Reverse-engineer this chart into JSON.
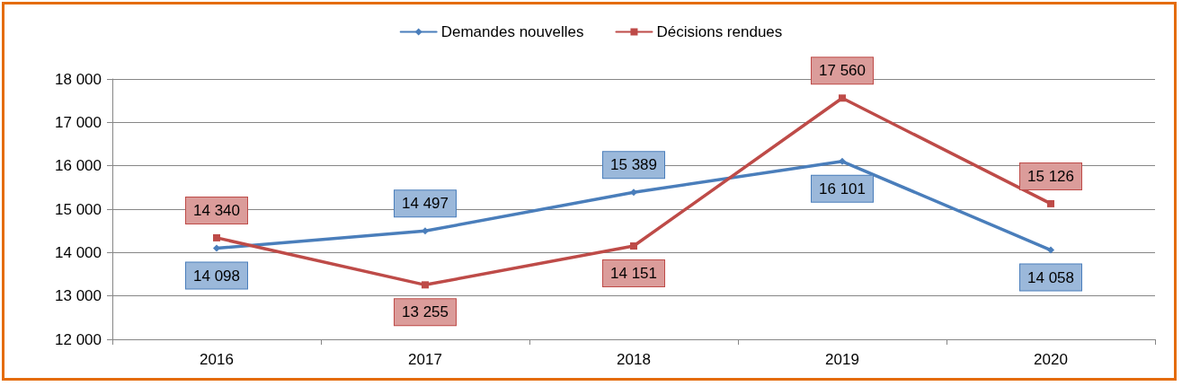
{
  "chart_data": {
    "type": "line",
    "categories": [
      "2016",
      "2017",
      "2018",
      "2019",
      "2020"
    ],
    "series": [
      {
        "name": "Demandes nouvelles",
        "color": "#4a7ebb",
        "marker": "diamond",
        "values": [
          14098,
          14497,
          15389,
          16101,
          14058
        ]
      },
      {
        "name": "Décisions rendues",
        "color": "#be4b48",
        "marker": "square",
        "values": [
          14340,
          13255,
          14151,
          17560,
          15126
        ]
      }
    ],
    "ylim": [
      12000,
      18000
    ],
    "yticks": [
      12000,
      13000,
      14000,
      15000,
      16000,
      17000,
      18000
    ],
    "grid": "y",
    "legend": "top",
    "data_labels": true
  }
}
